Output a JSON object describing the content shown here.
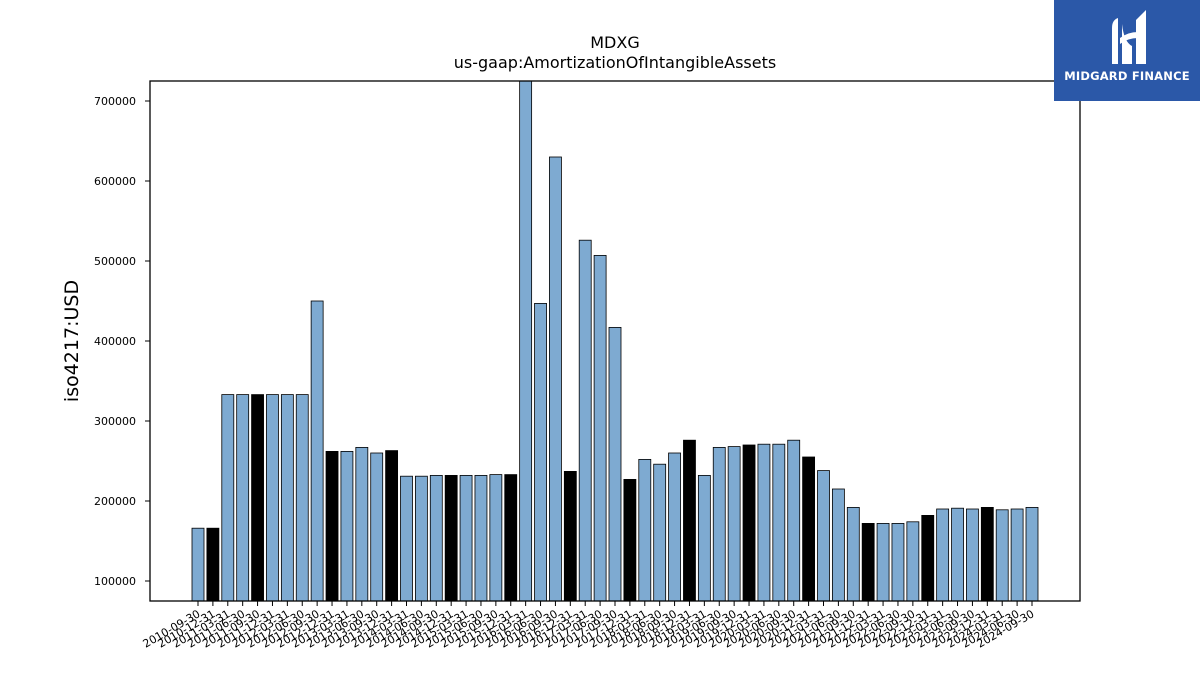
{
  "brand": {
    "name": "MIDGARD FINANCE",
    "color": "#2b58a8",
    "logo_icon": "midgard-logo-icon"
  },
  "chart_data": {
    "type": "bar",
    "title": "MDXG",
    "subtitle": "us-gaap:AmortizationOfIntangibleAssets",
    "xlabel": "",
    "ylabel": "iso4217:USD",
    "ylim": [
      75000,
      725000
    ],
    "yticks": [
      100000,
      200000,
      300000,
      400000,
      500000,
      600000,
      700000
    ],
    "grid": false,
    "colors": {
      "default": "#7eaad1",
      "highlight": "#000000",
      "edge": "#000000"
    },
    "categories": [
      "2010-09-30",
      "2010-12-31",
      "2011-03-31",
      "2011-06-30",
      "2011-09-30",
      "2011-12-31",
      "2012-03-31",
      "2012-06-30",
      "2012-09-30",
      "2012-12-31",
      "2013-03-31",
      "2013-06-30",
      "2013-09-30",
      "2013-12-31",
      "2014-03-31",
      "2014-06-30",
      "2014-09-30",
      "2014-12-31",
      "2015-03-31",
      "2015-06-30",
      "2015-09-30",
      "2015-12-31",
      "2016-03-31",
      "2016-06-30",
      "2016-09-30",
      "2016-12-31",
      "2017-03-31",
      "2017-06-30",
      "2017-09-30",
      "2017-12-31",
      "2018-03-31",
      "2018-06-30",
      "2018-09-30",
      "2018-12-31",
      "2019-03-31",
      "2019-06-30",
      "2019-09-30",
      "2019-12-31",
      "2020-03-31",
      "2020-06-30",
      "2020-09-30",
      "2020-12-31",
      "2021-03-31",
      "2021-06-30",
      "2021-09-30",
      "2021-12-31",
      "2022-03-31",
      "2022-06-30",
      "2022-09-30",
      "2022-12-31",
      "2023-03-31",
      "2023-06-30",
      "2023-09-30",
      "2023-12-31",
      "2024-03-31",
      "2024-06-30",
      "2024-09-30"
    ],
    "values": [
      166000,
      166000,
      333000,
      333000,
      333000,
      333000,
      333000,
      333000,
      450000,
      262000,
      262000,
      267000,
      260000,
      263000,
      231000,
      231000,
      232000,
      232000,
      232000,
      232000,
      233000,
      233000,
      730000,
      447000,
      630000,
      237000,
      526000,
      507000,
      417000,
      227000,
      252000,
      246000,
      260000,
      276000,
      232000,
      267000,
      268000,
      270000,
      271000,
      271000,
      276000,
      255000,
      238000,
      215000,
      192000,
      172000,
      172000,
      172000,
      174000,
      182000,
      190000,
      191000,
      190000,
      192000,
      189000,
      190000,
      192000
    ],
    "highlight": [
      false,
      true,
      false,
      false,
      true,
      false,
      false,
      false,
      false,
      true,
      false,
      false,
      false,
      true,
      false,
      false,
      false,
      true,
      false,
      false,
      false,
      true,
      false,
      false,
      false,
      true,
      false,
      false,
      false,
      true,
      false,
      false,
      false,
      true,
      false,
      false,
      false,
      true,
      false,
      false,
      false,
      true,
      false,
      false,
      false,
      true,
      false,
      false,
      false,
      true,
      false,
      false,
      false,
      true,
      false,
      false,
      false
    ]
  }
}
